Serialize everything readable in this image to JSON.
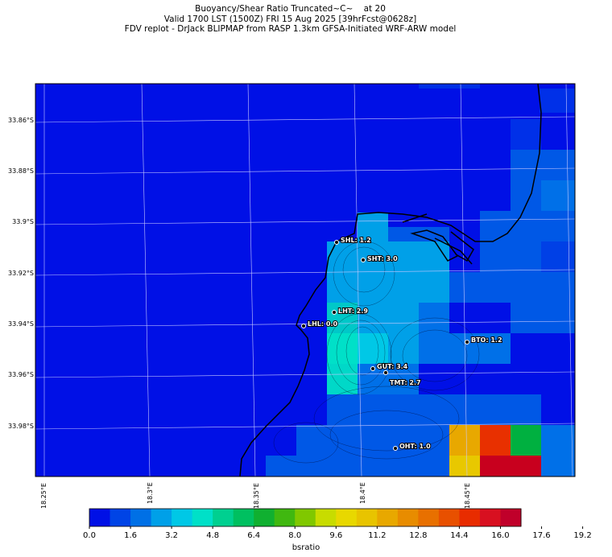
{
  "title": {
    "line1": "Buoyancy/Shear Ratio Truncated~C~    at 20",
    "line2": "Valid 1700 LST (1500Z) FRI 15 Aug 2025 [39hrFcst@0628z]",
    "line3": "FDV replot - DrJack BLIPMAP from RASP 1.3km GFSA-Initiated WRF-ARW model"
  },
  "lat_labels": [
    "33.86°S",
    "33.88°S",
    "33.9°S",
    "33.92°S",
    "33.94°S",
    "33.96°S",
    "33.98°S"
  ],
  "lon_labels": [
    "18.25°E",
    "18.3°E",
    "18.35°E",
    "18.4°E",
    "18.45°E"
  ],
  "sites": [
    {
      "name": "SHL: 1.2"
    },
    {
      "name": "SHT: 3.0"
    },
    {
      "name": "LHT: 2.9"
    },
    {
      "name": "LHL: 0.0"
    },
    {
      "name": "BTO: 1.2"
    },
    {
      "name": "GUT: 3.4"
    },
    {
      "name": "TMT: 2.7"
    },
    {
      "name": "OHT: 1.0"
    }
  ],
  "colorbar": {
    "label": "bsratio",
    "ticks": [
      "0.0",
      "1.6",
      "3.2",
      "4.8",
      "6.4",
      "8.0",
      "9.6",
      "11.2",
      "12.8",
      "14.4",
      "16.0",
      "17.6",
      "19.2"
    ],
    "colors": [
      "#0010e6",
      "#0044e6",
      "#0070e6",
      "#00a0e8",
      "#00c8e6",
      "#00e0c8",
      "#00d090",
      "#00c060",
      "#10b030",
      "#40b810",
      "#80c800",
      "#c8dc00",
      "#e8d800",
      "#e8c400",
      "#e8a800",
      "#e88c00",
      "#e87000",
      "#e85000",
      "#e82c00",
      "#d81020",
      "#c0002a"
    ]
  },
  "colors": {
    "coast": "#000000",
    "grid": "#c8c8ff"
  }
}
